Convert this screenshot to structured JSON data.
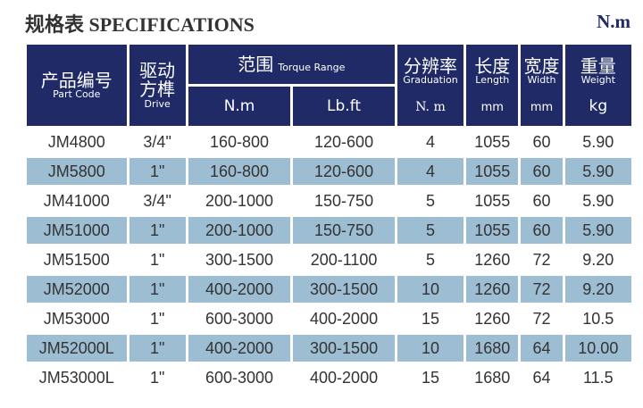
{
  "title": "规格表  SPECIFICATIONS",
  "unit": "N.m",
  "header": {
    "part_cn": "产品编号",
    "part_en": "Part Code",
    "drive_cn": "驱动方榫",
    "drive_en": "Drive",
    "range_cn": "范围",
    "range_en": "Torque Range",
    "nm": "N.m",
    "lbft": "Lb.ft",
    "grad_cn": "分辨率",
    "grad_en": "Graduation",
    "grad_unit": "N. m",
    "len_cn": "长度",
    "len_en": "Length",
    "len_unit": "mm",
    "wid_cn": "宽度",
    "wid_en": "Width",
    "wid_unit": "mm",
    "wt_cn": "重量",
    "wt_en": "Weight",
    "wt_unit": "kg"
  },
  "colors": {
    "header": "#1f2a66",
    "stripe": "#9dbdd3"
  },
  "rows": [
    [
      "JM4800",
      "3/4\"",
      "160-800",
      "120-600",
      "4",
      "1055",
      "60",
      "5.90"
    ],
    [
      "JM5800",
      "1\"",
      "160-800",
      "120-600",
      "4",
      "1055",
      "60",
      "5.90"
    ],
    [
      "JM41000",
      "3/4\"",
      "200-1000",
      "150-750",
      "5",
      "1055",
      "60",
      "5.90"
    ],
    [
      "JM51000",
      "1\"",
      "200-1000",
      "150-750",
      "5",
      "1055",
      "60",
      "5.90"
    ],
    [
      "JM51500",
      "1\"",
      "300-1500",
      "200-1100",
      "5",
      "1260",
      "72",
      "9.20"
    ],
    [
      "JM52000",
      "1\"",
      "400-2000",
      "300-1500",
      "10",
      "1260",
      "72",
      "9.20"
    ],
    [
      "JM53000",
      "1\"",
      "600-3000",
      "400-2000",
      "15",
      "1260",
      "72",
      "10.5"
    ],
    [
      "JM52000L",
      "1\"",
      "400-2000",
      "300-1500",
      "10",
      "1680",
      "64",
      "10.00"
    ],
    [
      "JM53000L",
      "1\"",
      "600-3000",
      "400-2000",
      "15",
      "1680",
      "64",
      "11.5"
    ]
  ]
}
